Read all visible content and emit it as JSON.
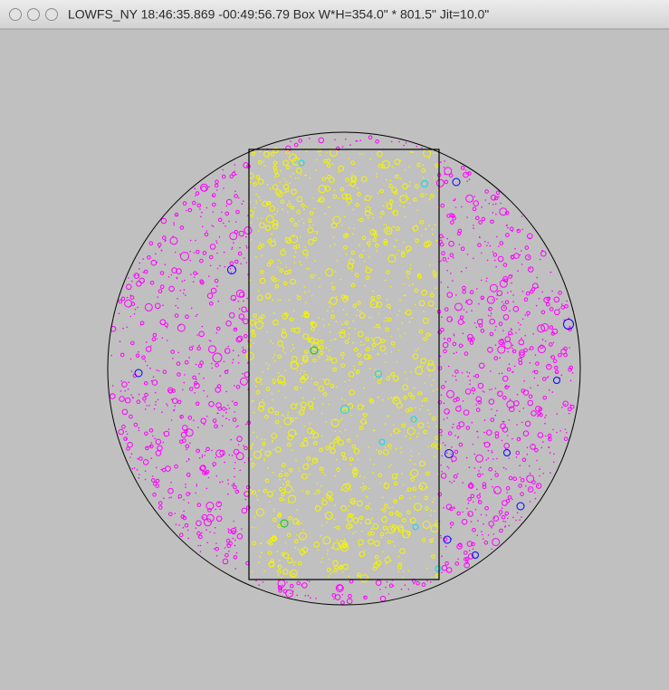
{
  "window": {
    "title": "LOWFS_NY 18:46:35.869 -00:49:56.79 Box W*H=354.0\" * 801.5\" Jit=10.0\""
  }
}
